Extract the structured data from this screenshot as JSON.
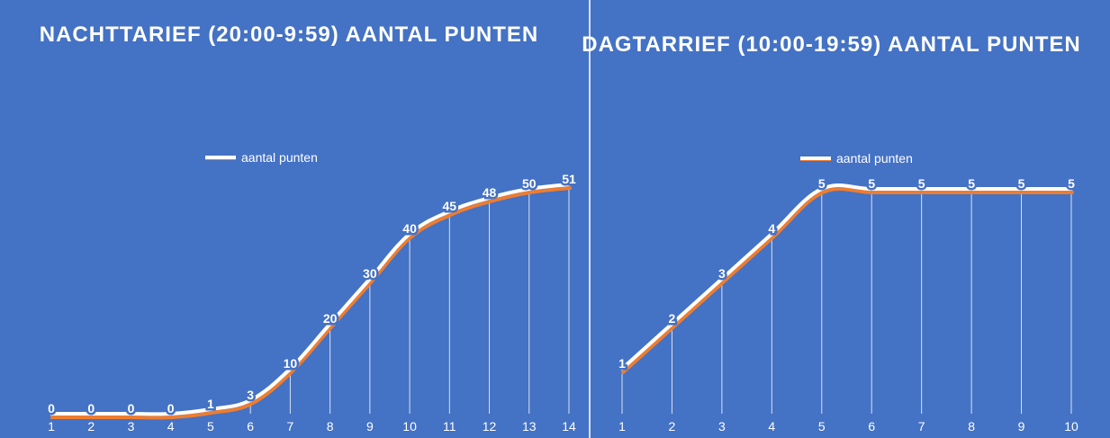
{
  "chart_data": [
    {
      "type": "line",
      "title": "NACHTTARIEF (20:00-9:59) AANTAL PUNTEN",
      "categories": [
        "1",
        "2",
        "3",
        "4",
        "5",
        "6",
        "7",
        "8",
        "9",
        "10",
        "11",
        "12",
        "13",
        "14"
      ],
      "series": [
        {
          "name": "aantal punten",
          "values": [
            0,
            0,
            0,
            0,
            1,
            3,
            10,
            20,
            30,
            40,
            45,
            48,
            50,
            51
          ]
        }
      ],
      "ylim": [
        0,
        60
      ],
      "grid": false,
      "drop_lines": true,
      "legend": "top-left",
      "line_color": "#ffffff",
      "shadow_color": "#ed7d31"
    },
    {
      "type": "line",
      "title": "DAGTARRIEF (10:00-19:59) AANTAL PUNTEN",
      "categories": [
        "1",
        "2",
        "3",
        "4",
        "5",
        "6",
        "7",
        "8",
        "9",
        "10"
      ],
      "series": [
        {
          "name": "aantal punten",
          "values": [
            1,
            2,
            3,
            4,
            5,
            5,
            5,
            5,
            5,
            5
          ]
        }
      ],
      "ylim": [
        0,
        6
      ],
      "grid": false,
      "drop_lines": true,
      "legend": "top-left",
      "line_color": "#ffffff",
      "shadow_color": "#ed7d31"
    }
  ],
  "colors": {
    "background": "#4472c4",
    "text": "#ffffff"
  }
}
